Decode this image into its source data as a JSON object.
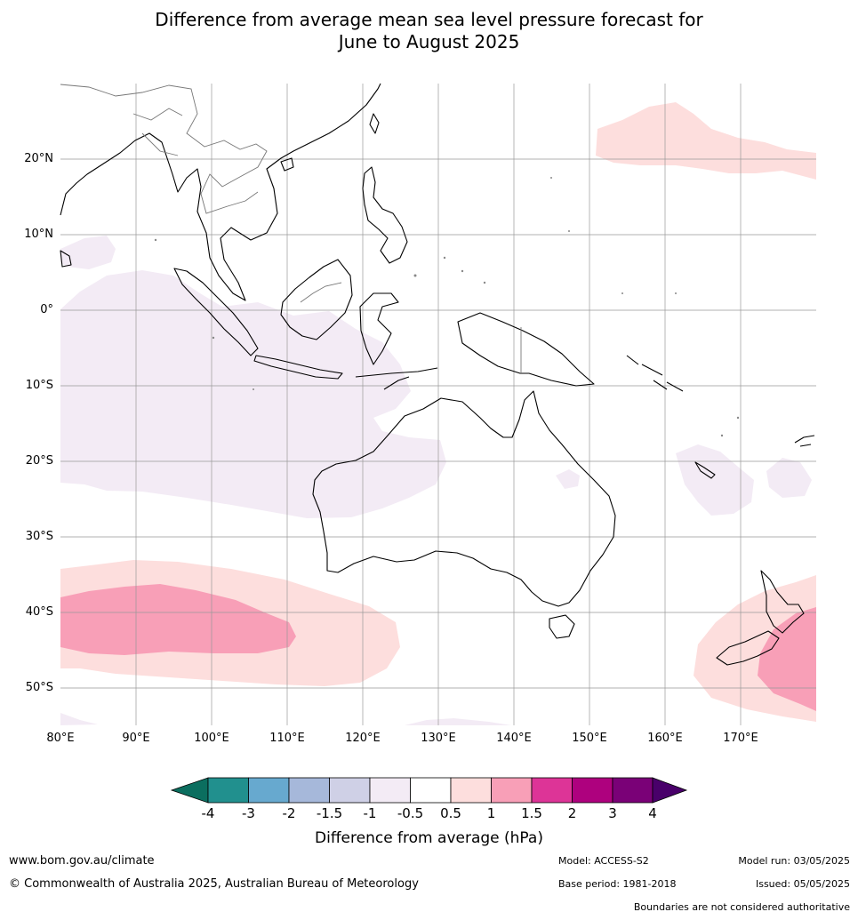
{
  "title_line1": "Difference from average mean sea level pressure forecast for",
  "title_line2": "June to August 2025",
  "map": {
    "lat_labels": [
      "20°N",
      "10°N",
      "0°",
      "10°S",
      "20°S",
      "30°S",
      "40°S",
      "50°S"
    ],
    "lon_labels": [
      "80°E",
      "90°E",
      "100°E",
      "110°E",
      "120°E",
      "130°E",
      "140°E",
      "150°E",
      "160°E",
      "170°E"
    ]
  },
  "colorbar": {
    "title": "Difference from average (hPa)",
    "tick_labels": [
      "-4",
      "-3",
      "-2",
      "-1.5",
      "-1",
      "-0.5",
      "0.5",
      "1",
      "1.5",
      "2",
      "3",
      "4"
    ],
    "colors": [
      "#0b6e5f",
      "#21908e",
      "#67a9cf",
      "#a6b8da",
      "#cfd0e6",
      "#f3ebf5",
      "#ffffff",
      "#fddedd",
      "#f89fb7",
      "#dd3497",
      "#ae017e",
      "#7a0177",
      "#49006a"
    ]
  },
  "footer": {
    "website": "www.bom.gov.au/climate",
    "copyright": "© Commonwealth of Australia 2025, Australian Bureau of Meteorology",
    "model": "Model: ACCESS-S2",
    "base_period": "Base period: 1981-2018",
    "model_run": "Model run: 03/05/2025",
    "issued": "Issued: 05/05/2025",
    "disclaimer": "Boundaries are not considered authoritative"
  }
}
